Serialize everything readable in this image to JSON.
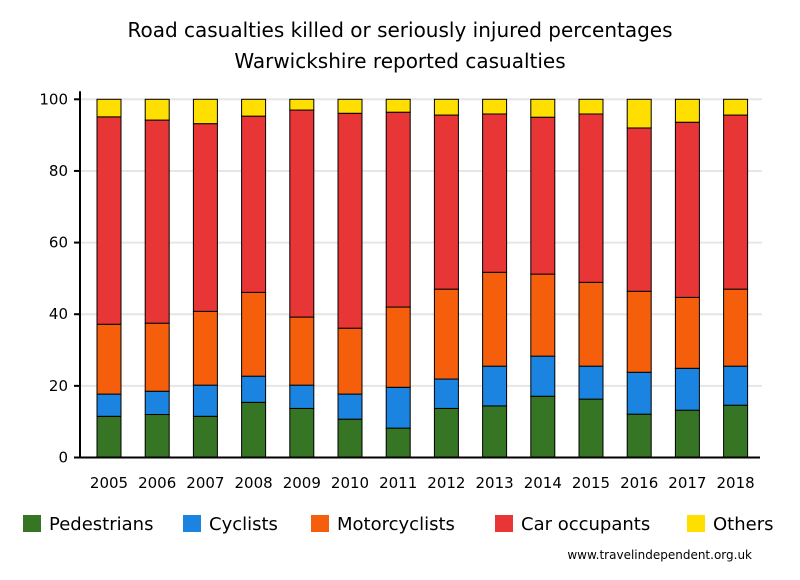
{
  "chart_data": {
    "type": "bar",
    "stacked": true,
    "title": "Road casualties killed or seriously injured percentages",
    "subtitle": "Warwickshire reported casualties",
    "xlabel": "",
    "ylabel": "",
    "ylim": [
      0,
      100
    ],
    "yticks": [
      0,
      20,
      40,
      60,
      80,
      100
    ],
    "grid": true,
    "legend_position": "bottom",
    "categories": [
      "2005",
      "2006",
      "2007",
      "2008",
      "2009",
      "2010",
      "2011",
      "2012",
      "2013",
      "2014",
      "2015",
      "2016",
      "2017",
      "2018"
    ],
    "series": [
      {
        "name": "Pedestrians",
        "color": "#367523",
        "values": [
          11.5,
          12.0,
          11.5,
          15.4,
          13.7,
          10.7,
          8.2,
          13.7,
          14.4,
          17.1,
          16.3,
          12.1,
          13.2,
          14.6
        ]
      },
      {
        "name": "Cyclists",
        "color": "#1b84e1",
        "values": [
          6.2,
          6.5,
          8.7,
          7.3,
          6.5,
          7.0,
          11.4,
          8.2,
          11.1,
          11.2,
          9.2,
          11.7,
          11.7,
          10.9
        ]
      },
      {
        "name": "Motorcyclists",
        "color": "#f55f0b",
        "values": [
          19.5,
          19.0,
          20.6,
          23.4,
          19.0,
          18.4,
          22.4,
          25.1,
          26.2,
          22.9,
          23.4,
          22.6,
          19.8,
          21.5
        ]
      },
      {
        "name": "Car occupants",
        "color": "#e83535",
        "values": [
          57.9,
          56.7,
          52.4,
          49.2,
          57.8,
          60.0,
          54.4,
          48.6,
          44.2,
          43.8,
          47.0,
          45.6,
          48.9,
          48.6
        ]
      },
      {
        "name": "Others",
        "color": "#ffdf00",
        "values": [
          4.9,
          5.8,
          6.8,
          4.7,
          3.0,
          3.9,
          3.6,
          4.4,
          4.1,
          5.0,
          4.1,
          8.0,
          6.4,
          4.4
        ]
      }
    ],
    "source": "www.travelindependent.org.uk"
  }
}
